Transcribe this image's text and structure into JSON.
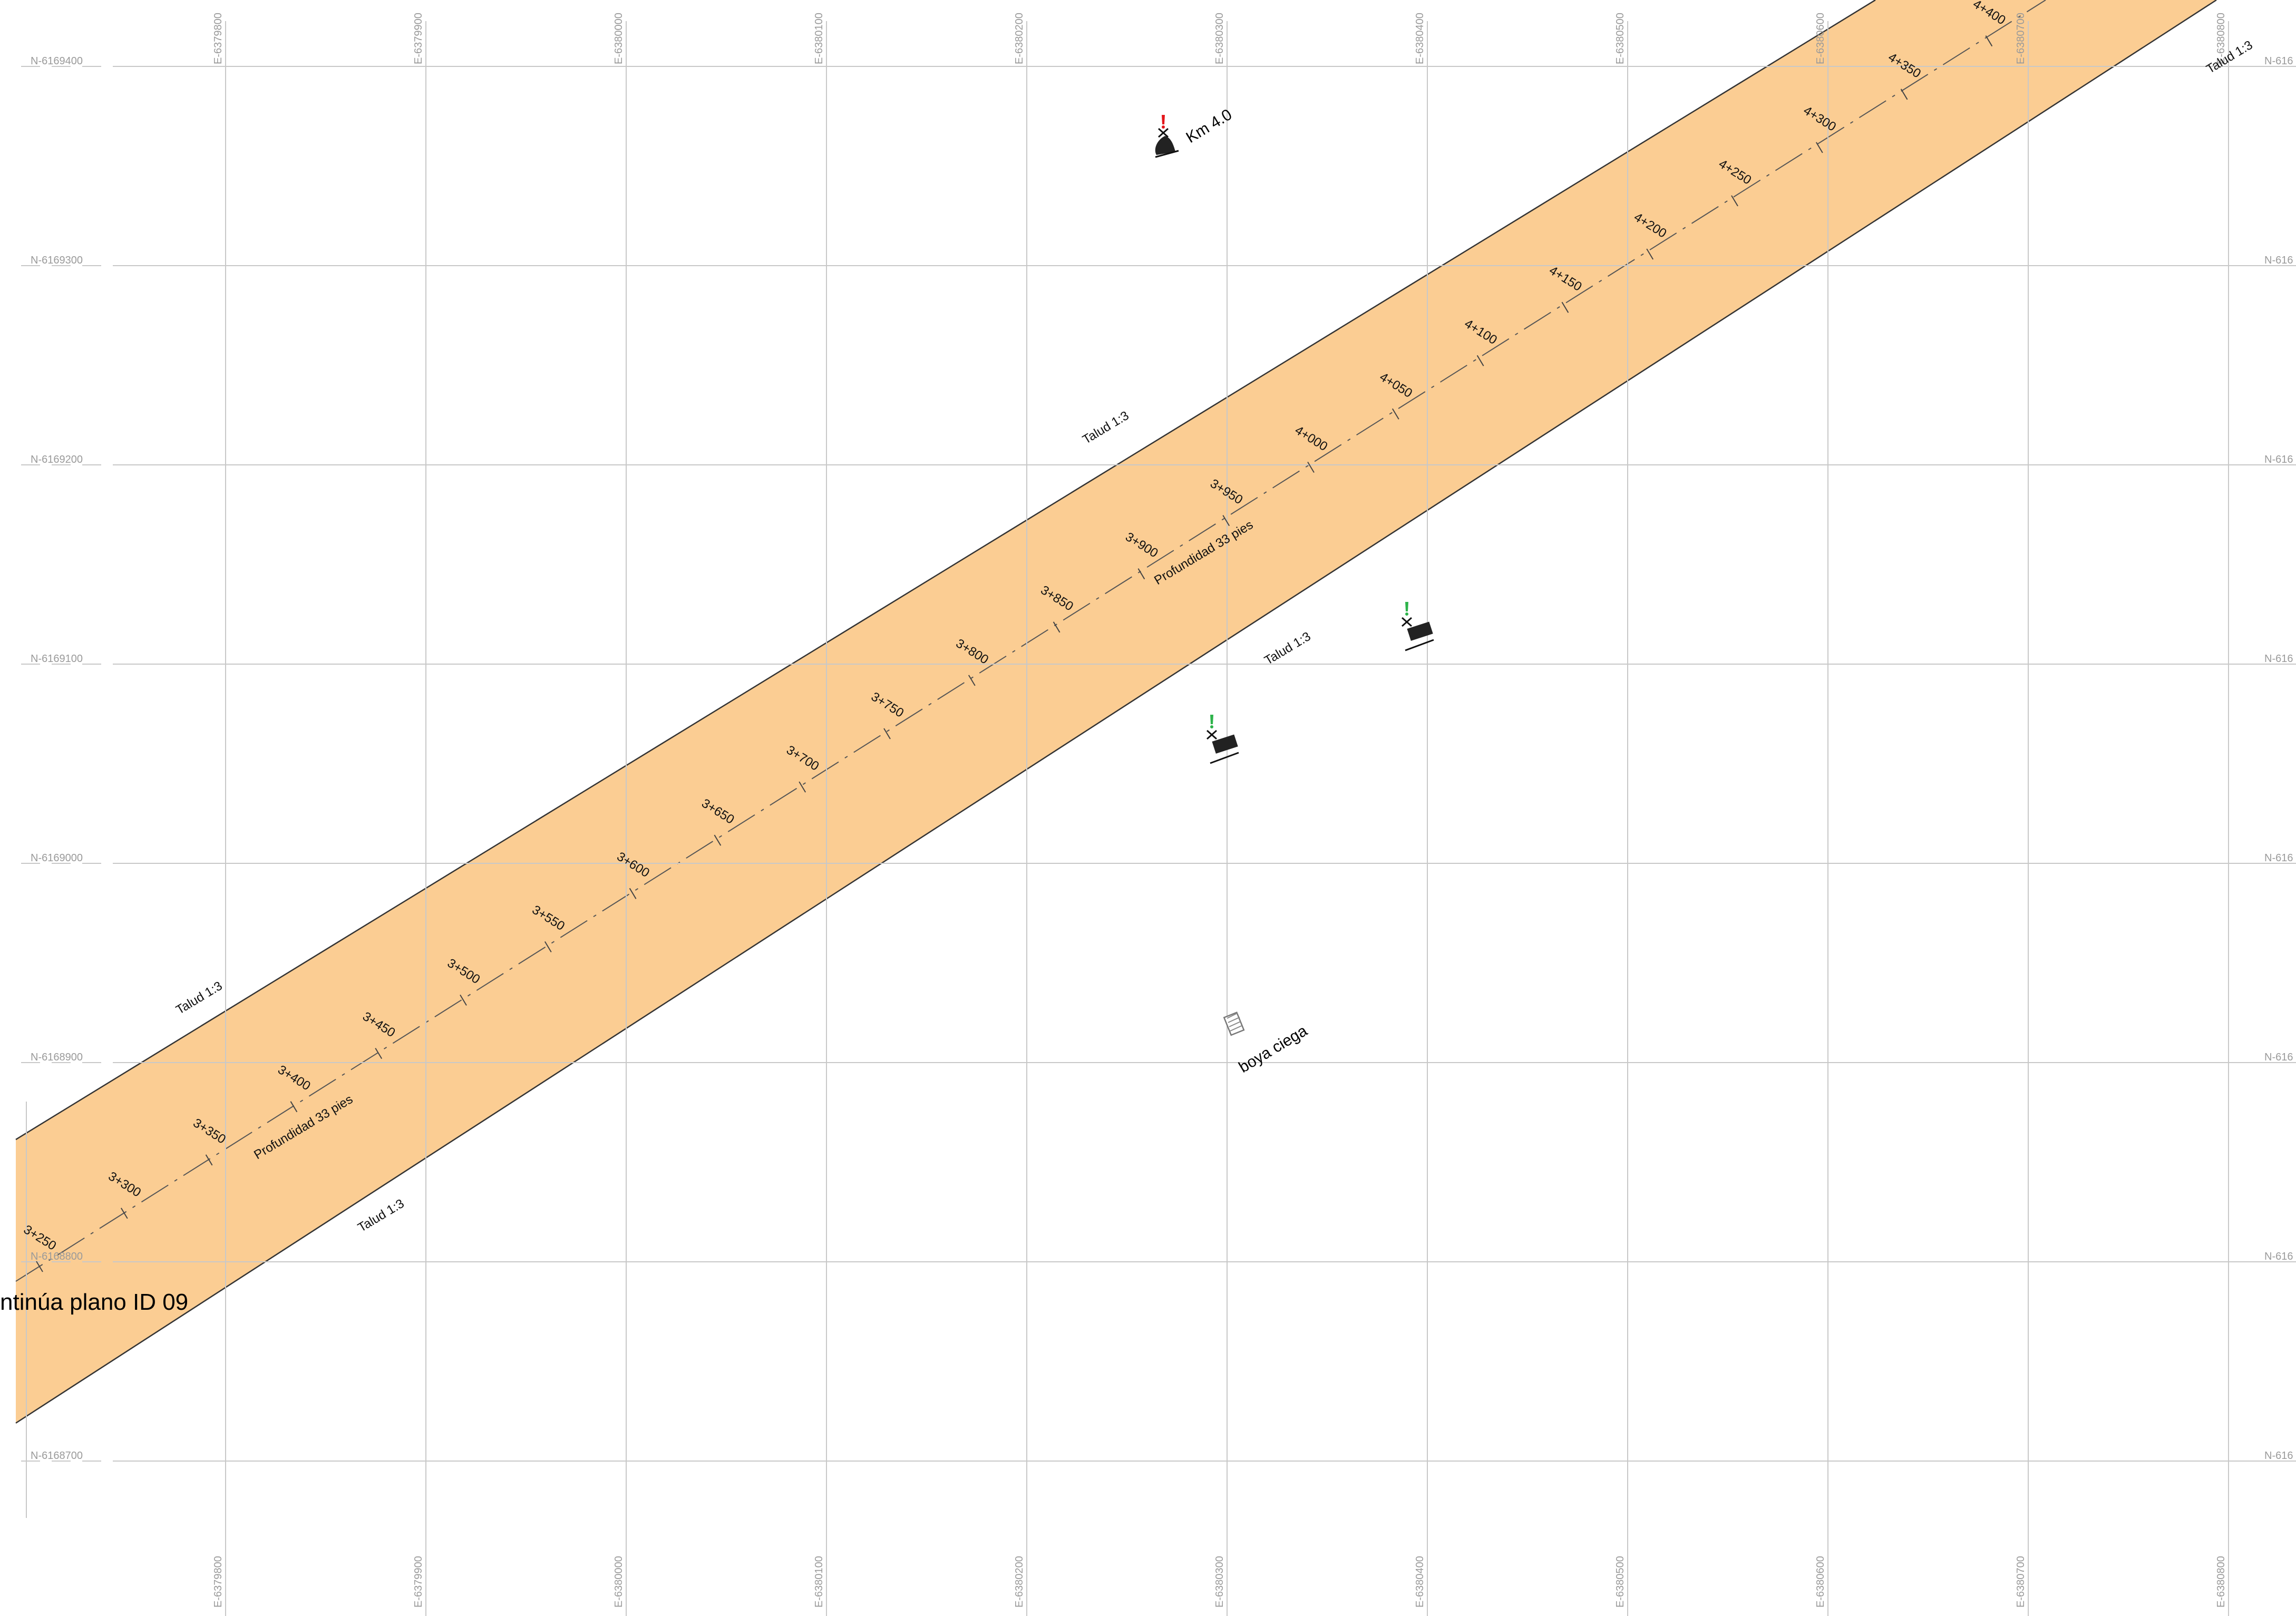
{
  "colors": {
    "channel_fill": "#fbcd93",
    "channel_edge": "#333333",
    "centerline": "#555555",
    "grid": "#c8c8c8",
    "coord_text": "#9a9a9a",
    "buoy_red": "#e4161b",
    "buoy_green": "#2db34a",
    "buoy_body": "#222222"
  },
  "grid": {
    "eastings_top": [
      "E-6379800",
      "E-6379900",
      "E-6380000",
      "E-6380100",
      "E-6380200",
      "E-6380300",
      "E-6380400",
      "E-6380500",
      "E-6380600",
      "E-6380700",
      "E-6380800"
    ],
    "eastings_bottom": [
      "E-6379800",
      "E-6379900",
      "E-6380000",
      "E-6380100",
      "E-6380200",
      "E-6380300",
      "E-6380400",
      "E-6380500",
      "E-6380600",
      "E-6380700",
      "E-6380800"
    ],
    "northings_left": [
      "N-6169400",
      "N-6169300",
      "N-6169200",
      "N-6169100",
      "N-6169000",
      "N-6168900",
      "N-6168800",
      "N-6168700"
    ],
    "northings_right": [
      "N-616",
      "N-616",
      "N-616",
      "N-616",
      "N-616",
      "N-616",
      "N-616",
      "N-616"
    ]
  },
  "chainages": [
    "3+250",
    "3+300",
    "3+350",
    "3+400",
    "3+450",
    "3+500",
    "3+550",
    "3+600",
    "3+650",
    "3+700",
    "3+750",
    "3+800",
    "3+850",
    "3+900",
    "3+950",
    "4+000",
    "4+050",
    "4+100",
    "4+150",
    "4+200",
    "4+250",
    "4+300",
    "4+350",
    "4+400"
  ],
  "labels": {
    "talud_upper_left": "Talud 1:3",
    "talud_upper_mid": "Talud 1:3",
    "talud_upper_right": "Talud 1:3",
    "talud_lower_left": "Talud 1:3",
    "talud_lower_mid": "Talud 1:3",
    "depth_left": "Profundidad 33 pies",
    "depth_mid": "Profundidad 33 pies",
    "continues": "ntinúa plano ID 09",
    "km_marker": "Km 4.0",
    "blind_buoy": "boya ciega"
  },
  "markers": [
    {
      "name": "km-4-buoy",
      "color": "red",
      "shape": "bell"
    },
    {
      "name": "green-buoy-1",
      "color": "green",
      "shape": "can"
    },
    {
      "name": "green-buoy-2",
      "color": "green",
      "shape": "can"
    },
    {
      "name": "blind-buoy",
      "color": "gray",
      "shape": "hatched"
    }
  ]
}
